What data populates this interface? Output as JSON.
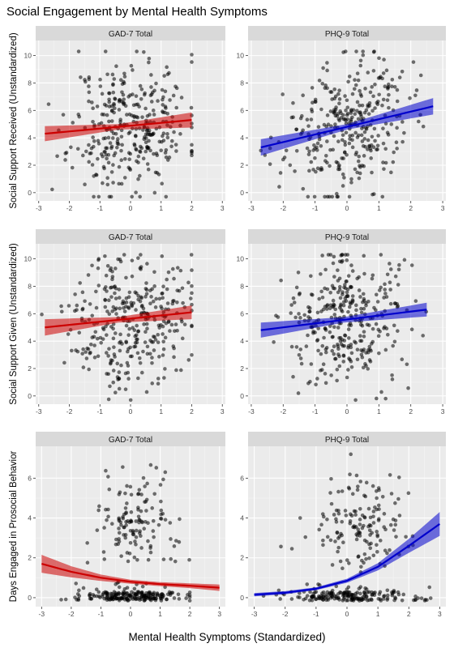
{
  "title": "Social Engagement by Mental Health Symptoms",
  "xlabel": "Mental Health Symptoms (Standardized)",
  "chart_data": [
    {
      "type": "scatter",
      "row": 0,
      "col": 0,
      "facet": "GAD-7 Total",
      "ylabel": "Social Support Received (Unstandardized)",
      "xlim": [
        -3.1,
        3.1
      ],
      "ylim": [
        -0.6,
        11.1
      ],
      "xticks": [
        -3,
        -2,
        -1,
        0,
        1,
        2,
        3
      ],
      "yticks": [
        0,
        2,
        4,
        6,
        8,
        10
      ],
      "fit_color": "#cc0000",
      "band_color": "#cc0000",
      "fit": [
        [
          -2.8,
          4.3
        ],
        [
          2.0,
          5.3
        ]
      ],
      "band_halfwidth": [
        0.55,
        0.2,
        0.55
      ],
      "points_x_range": [
        -2.9,
        2.0
      ],
      "points_y_range": [
        0,
        10
      ],
      "n_points": 340,
      "point_seed": 11,
      "point_mode": "received_gad"
    },
    {
      "type": "scatter",
      "row": 0,
      "col": 1,
      "facet": "PHQ-9 Total",
      "ylabel": "",
      "xlim": [
        -3.1,
        3.1
      ],
      "ylim": [
        -0.6,
        11.1
      ],
      "xticks": [
        -3,
        -2,
        -1,
        0,
        1,
        2,
        3
      ],
      "yticks": [
        0,
        2,
        4,
        6,
        8,
        10
      ],
      "fit_color": "#0000cc",
      "band_color": "#0000cc",
      "fit": [
        [
          -2.7,
          3.3
        ],
        [
          2.7,
          6.3
        ]
      ],
      "band_halfwidth": [
        0.6,
        0.2,
        0.6
      ],
      "points_x_range": [
        -2.7,
        2.7
      ],
      "points_y_range": [
        0,
        10
      ],
      "n_points": 340,
      "point_seed": 23,
      "point_mode": "received_phq"
    },
    {
      "type": "scatter",
      "row": 1,
      "col": 0,
      "facet": "GAD-7 Total",
      "ylabel": "Social Support Given (Unstandardized)",
      "xlim": [
        -3.1,
        3.1
      ],
      "ylim": [
        -0.6,
        11.1
      ],
      "xticks": [
        -3,
        -2,
        -1,
        0,
        1,
        2,
        3
      ],
      "yticks": [
        0,
        2,
        4,
        6,
        8,
        10
      ],
      "fit_color": "#cc0000",
      "band_color": "#cc0000",
      "fit": [
        [
          -2.8,
          5.0
        ],
        [
          2.0,
          6.1
        ]
      ],
      "band_halfwidth": [
        0.6,
        0.2,
        0.5
      ],
      "points_x_range": [
        -2.9,
        2.0
      ],
      "points_y_range": [
        0,
        10
      ],
      "n_points": 340,
      "point_seed": 37,
      "point_mode": "given_gad"
    },
    {
      "type": "scatter",
      "row": 1,
      "col": 1,
      "facet": "PHQ-9 Total",
      "ylabel": "",
      "xlim": [
        -3.1,
        3.1
      ],
      "ylim": [
        -0.6,
        11.1
      ],
      "xticks": [
        -3,
        -2,
        -1,
        0,
        1,
        2,
        3
      ],
      "yticks": [
        0,
        2,
        4,
        6,
        8,
        10
      ],
      "fit_color": "#0000cc",
      "band_color": "#0000cc",
      "fit": [
        [
          -2.7,
          4.8
        ],
        [
          2.5,
          6.3
        ]
      ],
      "band_halfwidth": [
        0.55,
        0.2,
        0.5
      ],
      "points_x_range": [
        -2.7,
        2.5
      ],
      "points_y_range": [
        0,
        10
      ],
      "n_points": 340,
      "point_seed": 41,
      "point_mode": "given_phq"
    },
    {
      "type": "scatter",
      "row": 2,
      "col": 0,
      "facet": "GAD-7 Total",
      "ylabel": "Days Engaged in Prosocial Behavior",
      "xlim": [
        -3.2,
        3.2
      ],
      "ylim": [
        -0.45,
        7.6
      ],
      "xticks": [
        -3,
        -2,
        -1,
        0,
        1,
        2,
        3
      ],
      "yticks": [
        0,
        2,
        4,
        6
      ],
      "fit_color": "#cc0000",
      "band_color": "#cc0000",
      "fit_curve": [
        [
          -3,
          1.7
        ],
        [
          -2,
          1.3
        ],
        [
          -1,
          1.0
        ],
        [
          0,
          0.8
        ],
        [
          1,
          0.68
        ],
        [
          2,
          0.6
        ],
        [
          3,
          0.5
        ]
      ],
      "band_curve": [
        0.45,
        0.28,
        0.16,
        0.1,
        0.1,
        0.12,
        0.16
      ],
      "points_x_range": [
        -2.9,
        2.0
      ],
      "points_y_range": [
        0,
        7
      ],
      "n_points": 340,
      "point_seed": 53,
      "point_mode": "days_gad"
    },
    {
      "type": "scatter",
      "row": 2,
      "col": 1,
      "facet": "PHQ-9 Total",
      "ylabel": "",
      "xlim": [
        -3.2,
        3.2
      ],
      "ylim": [
        -0.45,
        7.6
      ],
      "xticks": [
        -3,
        -2,
        -1,
        0,
        1,
        2,
        3
      ],
      "yticks": [
        0,
        2,
        4,
        6
      ],
      "fit_color": "#0000cc",
      "band_color": "#0000cc",
      "fit_curve": [
        [
          -3,
          0.15
        ],
        [
          -2,
          0.25
        ],
        [
          -1,
          0.45
        ],
        [
          0,
          0.85
        ],
        [
          1,
          1.55
        ],
        [
          2,
          2.6
        ],
        [
          3,
          3.7
        ]
      ],
      "band_curve": [
        0.08,
        0.08,
        0.07,
        0.1,
        0.18,
        0.35,
        0.6
      ],
      "points_x_range": [
        -2.7,
        2.8
      ],
      "points_y_range": [
        0,
        7
      ],
      "n_points": 340,
      "point_seed": 67,
      "point_mode": "days_phq"
    }
  ]
}
